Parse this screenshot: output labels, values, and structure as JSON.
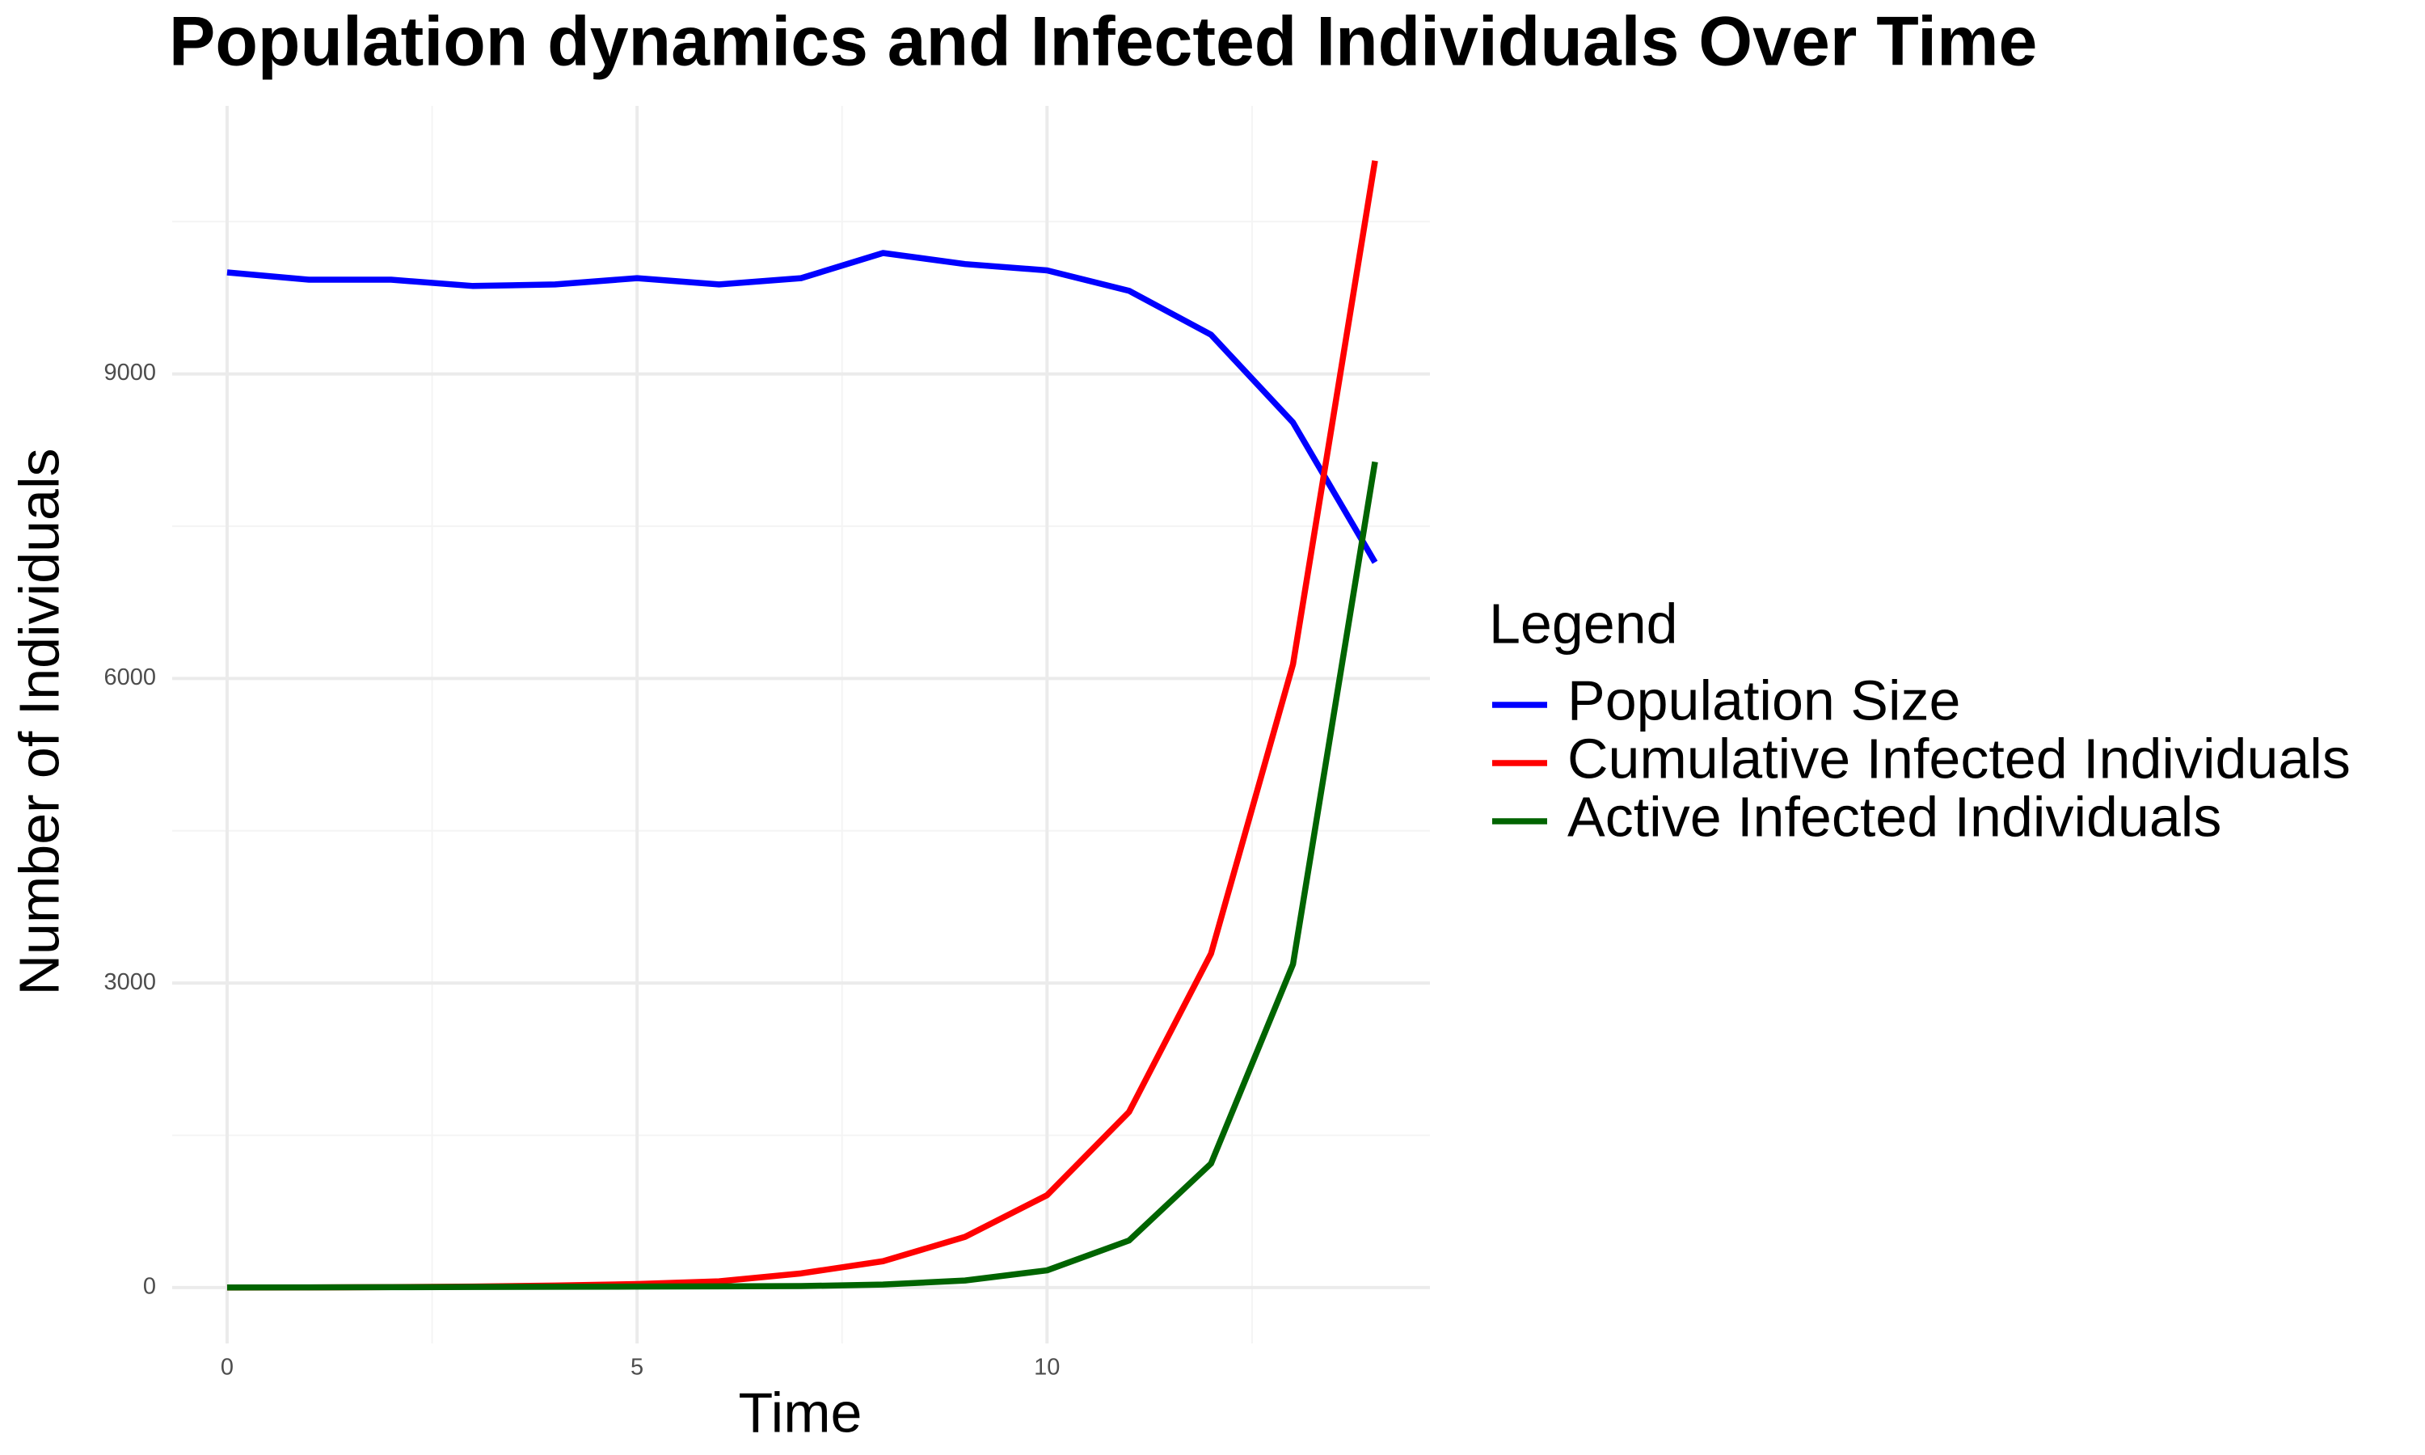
{
  "chart_data": {
    "type": "line",
    "title": "Population dynamics and Infected Individuals Over Time",
    "x_label": "Time",
    "y_label": "Number of Individuals",
    "legend_title": "Legend",
    "legend": "right",
    "x": [
      0,
      1,
      2,
      3,
      4,
      5,
      6,
      7,
      8,
      9,
      10,
      11,
      12,
      13,
      14
    ],
    "series": [
      {
        "name": "Population Size",
        "color": "#0000ff",
        "values": [
          10000,
          9928,
          9928,
          9866,
          9881,
          9943,
          9881,
          9943,
          10191,
          10082,
          10020,
          9819,
          9386,
          8521,
          7144
        ]
      },
      {
        "name": "Cumulative Infected Individuals",
        "color": "#ff0000",
        "values": [
          0,
          1,
          5,
          10,
          20,
          35,
          62,
          140,
          260,
          500,
          910,
          1730,
          3290,
          6140,
          11100
        ]
      },
      {
        "name": "Active Infected Individuals",
        "color": "#006400",
        "values": [
          1,
          2,
          4,
          6,
          8,
          10,
          12,
          15,
          30,
          70,
          170,
          464,
          1222,
          3186,
          8134
        ]
      }
    ],
    "xlim": [
      -0.67,
      14.67
    ],
    "ylim": [
      -550,
      11640
    ],
    "xticks": [
      0,
      5,
      10
    ],
    "yticks": [
      0,
      3000,
      6000,
      9000
    ],
    "xminor_ticks": [
      2.5,
      7.5,
      12.5
    ],
    "yminor_ticks": [
      1500,
      4500,
      7500,
      10500
    ],
    "grid": true
  }
}
